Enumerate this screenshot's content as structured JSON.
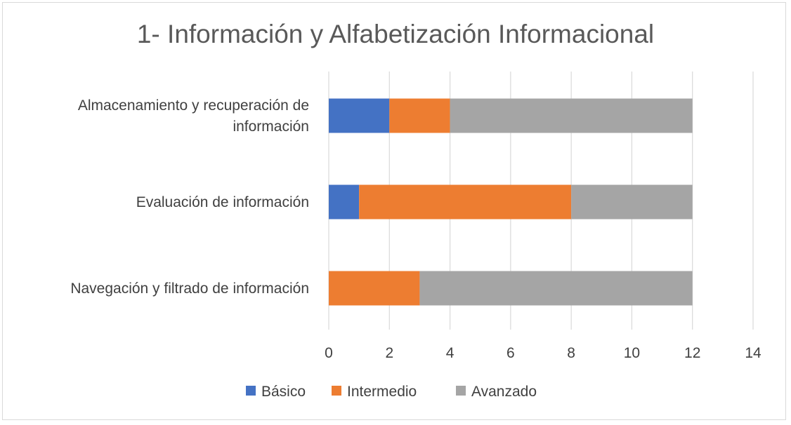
{
  "chart_data": {
    "type": "bar",
    "orientation": "horizontal",
    "stacked": true,
    "title": "1- Información y Alfabetización Informacional",
    "categories": [
      [
        "Almacenamiento y recuperación de",
        "información"
      ],
      [
        "Evaluación de información"
      ],
      [
        "Navegación y filtrado de información"
      ]
    ],
    "series": [
      {
        "name": "Básico",
        "color": "#4472C4",
        "values": [
          2,
          1,
          0
        ]
      },
      {
        "name": "Intermedio",
        "color": "#ED7D31",
        "values": [
          2,
          7,
          3
        ]
      },
      {
        "name": "Avanzado",
        "color": "#A5A5A5",
        "values": [
          8,
          4,
          9
        ]
      }
    ],
    "xlim": [
      0,
      14
    ],
    "xticks": [
      0,
      2,
      4,
      6,
      8,
      10,
      12,
      14
    ],
    "grid": true,
    "legend": "bottom"
  }
}
